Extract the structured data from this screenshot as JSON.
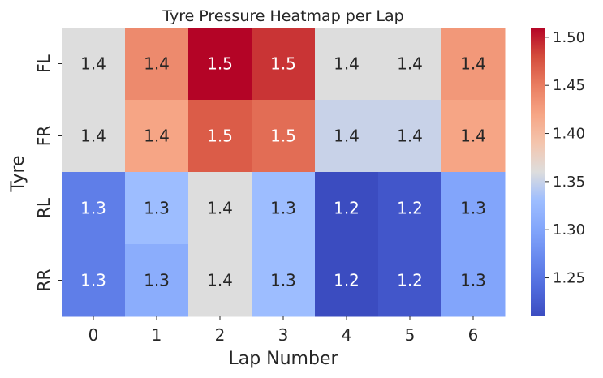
{
  "chart_data": {
    "type": "heatmap",
    "title": "Tyre Pressure Heatmap per Lap",
    "xlabel": "Lap Number",
    "ylabel": "Tyre",
    "x_categories": [
      "0",
      "1",
      "2",
      "3",
      "4",
      "5",
      "6"
    ],
    "y_categories": [
      "FL",
      "FR",
      "RL",
      "RR"
    ],
    "values": [
      [
        1.36,
        1.44,
        1.51,
        1.49,
        1.36,
        1.36,
        1.43
      ],
      [
        1.36,
        1.42,
        1.47,
        1.46,
        1.35,
        1.35,
        1.42
      ],
      [
        1.26,
        1.33,
        1.36,
        1.33,
        1.21,
        1.22,
        1.3
      ],
      [
        1.26,
        1.31,
        1.36,
        1.33,
        1.21,
        1.22,
        1.3
      ]
    ],
    "cell_labels": [
      [
        "1.4",
        "1.4",
        "1.5",
        "1.5",
        "1.4",
        "1.4",
        "1.4"
      ],
      [
        "1.4",
        "1.4",
        "1.5",
        "1.5",
        "1.4",
        "1.4",
        "1.4"
      ],
      [
        "1.3",
        "1.3",
        "1.4",
        "1.3",
        "1.2",
        "1.2",
        "1.3"
      ],
      [
        "1.3",
        "1.3",
        "1.4",
        "1.3",
        "1.2",
        "1.2",
        "1.3"
      ]
    ],
    "colormap": "coolwarm",
    "vmin": 1.21,
    "vmax": 1.51,
    "colorbar_ticks": [
      1.25,
      1.3,
      1.35,
      1.4,
      1.45,
      1.5
    ],
    "colorbar_tick_labels": [
      "1.25",
      "1.30",
      "1.35",
      "1.40",
      "1.45",
      "1.50"
    ],
    "grid": false
  }
}
